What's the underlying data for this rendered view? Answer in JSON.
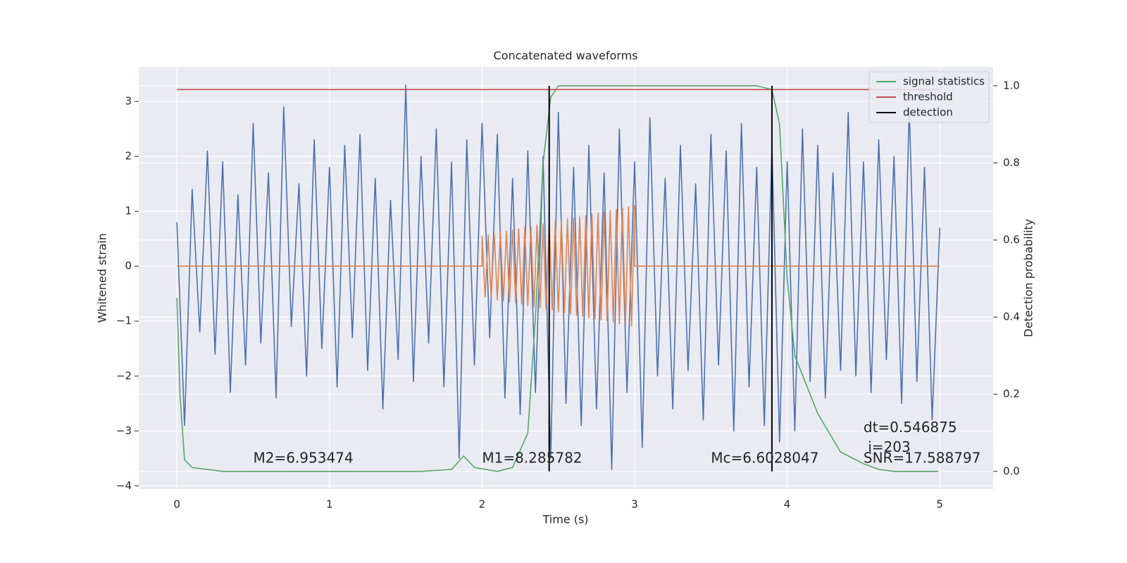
{
  "chart_data": {
    "type": "line",
    "title": "Concatenated waveforms",
    "x_label": "Time (s)",
    "y_label": "Whitened strain",
    "y2_label": "Detection probability",
    "xlim": [
      -0.25,
      5.35
    ],
    "ylim": [
      -4.06,
      3.63
    ],
    "y2lim": [
      -0.046,
      1.049
    ],
    "xticks": [
      0,
      1,
      2,
      3,
      4,
      5
    ],
    "yticks": [
      {
        "value": -4,
        "label": "−4"
      },
      {
        "value": -3,
        "label": "−3"
      },
      {
        "value": -2,
        "label": "−2"
      },
      {
        "value": -1,
        "label": "−1"
      },
      0,
      1,
      2,
      3
    ],
    "y2ticks": [
      {
        "value": 0,
        "label": "0.0"
      },
      0.2,
      0.4,
      0.6,
      0.8,
      {
        "value": 1,
        "label": "1.0"
      }
    ],
    "grid": true,
    "legend": "upper right",
    "series": [
      {
        "color": "#4c72b0",
        "x": [
          0,
          0.05,
          0.1,
          0.15,
          0.2,
          0.25,
          0.3,
          0.35,
          0.4,
          0.45,
          0.5,
          0.55,
          0.6,
          0.65,
          0.7,
          0.75,
          0.8,
          0.85,
          0.9,
          0.95,
          1,
          1.05,
          1.1,
          1.15,
          1.2,
          1.25,
          1.3,
          1.35,
          1.4,
          1.45,
          1.5,
          1.55,
          1.6,
          1.65,
          1.7,
          1.75,
          1.8,
          1.85,
          1.9,
          1.95,
          2,
          2.05,
          2.1,
          2.15,
          2.2,
          2.25,
          2.3,
          2.35,
          2.4,
          2.45,
          2.5,
          2.55,
          2.6,
          2.65,
          2.7,
          2.75,
          2.8,
          2.85,
          2.9,
          2.95,
          3,
          3.05,
          3.1,
          3.15,
          3.2,
          3.25,
          3.3,
          3.35,
          3.4,
          3.45,
          3.5,
          3.55,
          3.6,
          3.65,
          3.7,
          3.75,
          3.8,
          3.85,
          3.9,
          3.95,
          4,
          4.05,
          4.1,
          4.15,
          4.2,
          4.25,
          4.3,
          4.35,
          4.4,
          4.45,
          4.5,
          4.55,
          4.6,
          4.65,
          4.7,
          4.75,
          4.8,
          4.85,
          4.9,
          4.95,
          5
        ],
        "values": [
          0.8,
          -2.9,
          1.4,
          -1.2,
          2.1,
          -1.6,
          1.9,
          -2.3,
          1.3,
          -1.8,
          2.6,
          -1.4,
          1.7,
          -2.4,
          2.9,
          -1.1,
          1.5,
          -2.0,
          2.3,
          -1.5,
          1.8,
          -2.2,
          2.2,
          -1.3,
          2.4,
          -1.9,
          1.6,
          -2.6,
          1.2,
          -1.7,
          3.3,
          -2.1,
          2.0,
          -1.4,
          2.5,
          -2.2,
          1.9,
          -3.5,
          2.3,
          -1.8,
          2.6,
          -1.3,
          2.4,
          -2.4,
          1.6,
          -2.7,
          2.1,
          -2.3,
          2.0,
          -3.5,
          2.8,
          -2.5,
          1.8,
          -2.9,
          2.2,
          -2.6,
          1.7,
          -3.7,
          2.5,
          -2.3,
          1.9,
          -3.3,
          2.7,
          -2.0,
          1.6,
          -2.6,
          2.2,
          -1.9,
          1.5,
          -2.8,
          2.4,
          -1.8,
          2.1,
          -3.0,
          2.6,
          -2.2,
          1.8,
          -2.9,
          2.2,
          -3.2,
          1.9,
          -3.0,
          2.5,
          -2.1,
          2.2,
          -2.4,
          1.7,
          -1.9,
          2.8,
          -2.0,
          1.9,
          -2.3,
          2.3,
          -1.7,
          2.0,
          -2.5,
          2.9,
          -2.1,
          1.8,
          -2.8,
          0.7
        ]
      },
      {
        "color": "#dd8452",
        "x": [
          0,
          2,
          2,
          2.02,
          2.04,
          2.06,
          2.08,
          2.1,
          2.12,
          2.14,
          2.16,
          2.18,
          2.2,
          2.22,
          2.24,
          2.26,
          2.28,
          2.3,
          2.32,
          2.34,
          2.36,
          2.38,
          2.4,
          2.42,
          2.44,
          2.46,
          2.48,
          2.5,
          2.52,
          2.54,
          2.56,
          2.58,
          2.6,
          2.62,
          2.64,
          2.66,
          2.68,
          2.7,
          2.72,
          2.74,
          2.76,
          2.78,
          2.8,
          2.82,
          2.84,
          2.86,
          2.88,
          2.9,
          2.92,
          2.94,
          2.96,
          2.98,
          3,
          3,
          5
        ],
        "values": [
          0,
          0,
          0.55,
          -0.56,
          0.57,
          -0.58,
          0.59,
          -0.61,
          0.62,
          -0.63,
          0.64,
          -0.65,
          0.66,
          -0.67,
          0.68,
          -0.69,
          0.7,
          -0.72,
          0.73,
          -0.74,
          0.75,
          -0.76,
          0.77,
          -0.78,
          0.79,
          -0.8,
          0.81,
          -0.83,
          0.84,
          -0.85,
          0.86,
          -0.87,
          0.88,
          -0.89,
          0.9,
          -0.91,
          0.92,
          -0.94,
          0.95,
          -0.96,
          0.97,
          -0.98,
          0.99,
          -1.0,
          1.01,
          -1.02,
          1.03,
          -1.05,
          1.06,
          -1.07,
          1.08,
          -1.09,
          1.1,
          0,
          0
        ]
      },
      {
        "name": "signal statistics",
        "color": "#55a868",
        "axis": "y2",
        "x": [
          0,
          0.02,
          0.05,
          0.1,
          0.3,
          1.6,
          1.8,
          1.88,
          1.95,
          2.1,
          2.2,
          2.3,
          2.35,
          2.4,
          2.45,
          2.5,
          3.8,
          3.9,
          3.95,
          4,
          4.05,
          4.2,
          4.35,
          4.5,
          4.6,
          4.7,
          4.99
        ],
        "values": [
          0.45,
          0.2,
          0.03,
          0.01,
          0,
          0,
          0.005,
          0.04,
          0.01,
          0,
          0.01,
          0.1,
          0.4,
          0.8,
          0.97,
          1,
          1,
          0.99,
          0.9,
          0.5,
          0.3,
          0.15,
          0.05,
          0.02,
          0.005,
          0,
          0
        ]
      },
      {
        "name": "threshold",
        "color": "#c44e52",
        "axis": "y2",
        "x": [
          0,
          5
        ],
        "values": [
          0.99,
          0.99
        ]
      }
    ],
    "vlines": {
      "name": "detection",
      "color": "#000000",
      "axis": "y2",
      "x": [
        2.44,
        3.9
      ],
      "ymin": 0,
      "ymax": 1
    },
    "annotations": [
      {
        "text": "M2=6.953474",
        "x": 0.5,
        "y": -3.51
      },
      {
        "text": "M1=8.285782",
        "x": 2.0,
        "y": -3.51
      },
      {
        "text": "Mc=6.6028047",
        "x": 3.5,
        "y": -3.51
      },
      {
        "text": "dt=0.546875",
        "x": 4.5,
        "y": -2.95
      },
      {
        "text": " i=203",
        "x": 4.5,
        "y": -3.31
      },
      {
        "text": "SNR=17.588797",
        "x": 4.5,
        "y": -3.51
      }
    ]
  }
}
